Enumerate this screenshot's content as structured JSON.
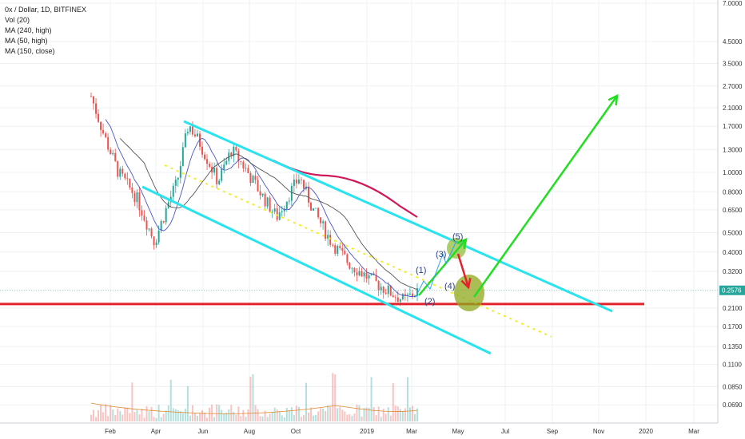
{
  "legend": {
    "symbol": "0x / Dollar, 1D, BITFINEX",
    "lines": [
      "Vol (20)",
      "MA (240, high)",
      "MA (50, high)",
      "MA (150, close)"
    ]
  },
  "colors": {
    "up": "#26a69a",
    "down": "#ef5350",
    "channel": "#29e3ee",
    "support": "#e3232c",
    "midline": "#f2ec2a",
    "arrow_up": "#22dd22",
    "arrow_down": "#e3232c",
    "ma50": "#4b55c8",
    "ma150": "#d0185a",
    "ma240": "#555555",
    "price_tag": "#26a69a"
  },
  "chart_data": {
    "type": "candlestick",
    "scale": "log",
    "ylim": [
      0.06,
      7.0
    ],
    "x_ticks": [
      "Feb",
      "Apr",
      "Jun",
      "Aug",
      "Oct",
      "2019",
      "Mar",
      "May",
      "Jul",
      "Sep",
      "Nov",
      "2020",
      "Mar"
    ],
    "y_ticks": [
      7.0,
      4.5,
      3.5,
      2.7,
      2.1,
      1.7,
      1.3,
      1.0,
      0.8,
      0.65,
      0.5,
      0.4,
      0.32,
      0.21,
      0.17,
      0.135,
      0.11,
      0.085,
      0.069
    ],
    "y_tick_labels": [
      "7.0000",
      "4.5000",
      "3.5000",
      "2.7000",
      "2.1000",
      "1.7000",
      "1.3000",
      "1.0000",
      "0.8000",
      "0.6500",
      "0.5000",
      "0.4000",
      "0.3200",
      "0.2100",
      "0.1700",
      "0.1350",
      "0.1100",
      "0.0850",
      "0.0690"
    ],
    "last_price": "0.2576",
    "last_price_value": 0.2576,
    "support_level": 0.22,
    "wave_labels": [
      {
        "text": "(1)",
        "date_index": 9.0,
        "price": 0.33
      },
      {
        "text": "(2)",
        "date_index": 9.45,
        "price": 0.215
      },
      {
        "text": "(3)",
        "date_index": 9.7,
        "price": 0.39
      },
      {
        "text": "(4)",
        "date_index": 9.75,
        "price": 0.28
      },
      {
        "text": "(5)",
        "date_index": 10.0,
        "price": 0.49
      }
    ]
  }
}
